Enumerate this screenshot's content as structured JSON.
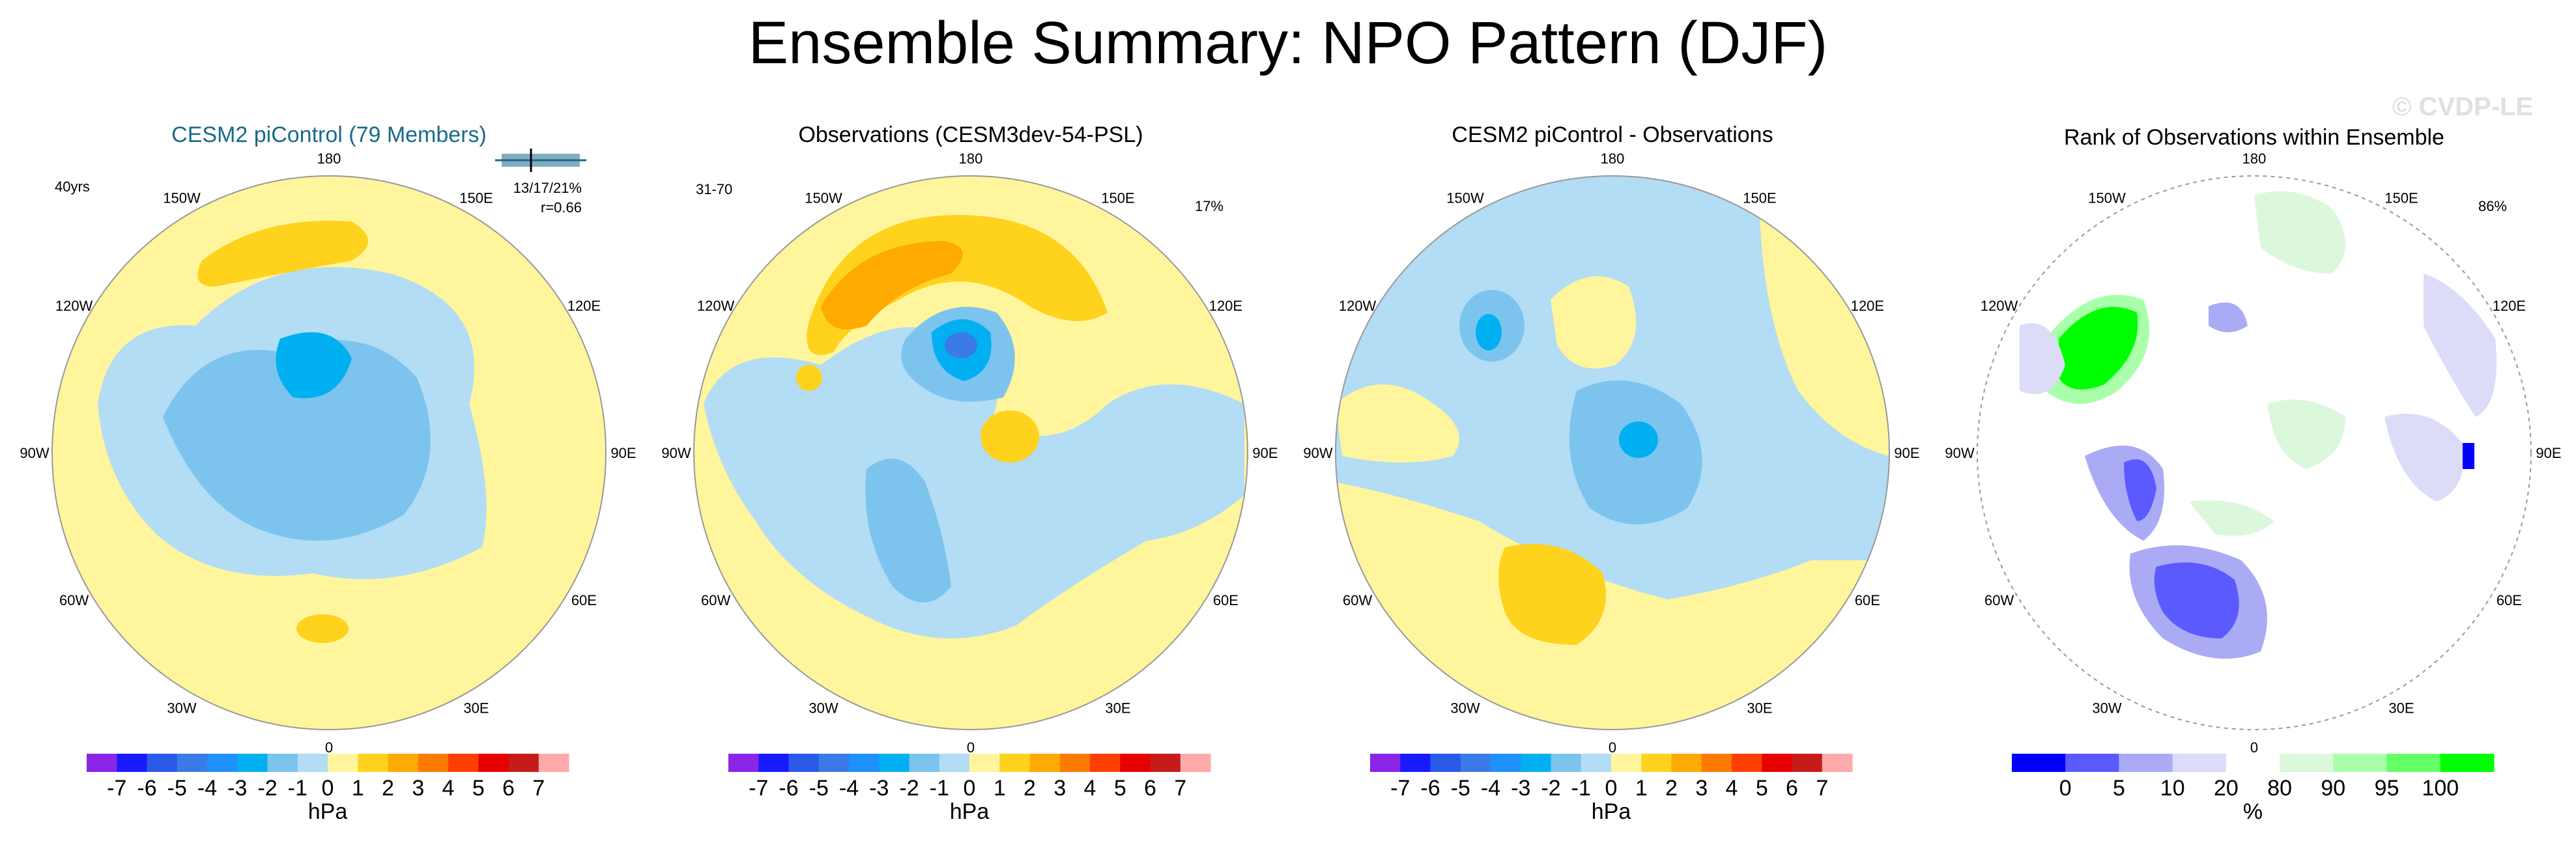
{
  "title": "Ensemble Summary: NPO Pattern (DJF)",
  "watermark": "© CVDP-LE",
  "longitude_labels": [
    "180",
    "150E",
    "120E",
    "90E",
    "60E",
    "30E",
    "0",
    "30W",
    "60W",
    "90W",
    "120W",
    "150W"
  ],
  "colors": {
    "title_blue": "#1a6a8a",
    "diverging": [
      "#8b26e6",
      "#1a1aff",
      "#2a5ae8",
      "#3a7be8",
      "#1e90ff",
      "#00b0f0",
      "#7cc4ee",
      "#b3dcf5",
      "#fff59d",
      "#ffd21e",
      "#ffaa00",
      "#ff7a00",
      "#ff3f00",
      "#e60000",
      "#c71a1a",
      "#ffaaaa"
    ],
    "rank": [
      "#0000ff",
      "#5a5aff",
      "#aaaaf5",
      "#dcdcf8",
      "#ffffff",
      "#dcf8dc",
      "#aaffaa",
      "#66ff66",
      "#00ff00"
    ]
  },
  "panels": [
    {
      "title": "CESM2 piControl (79 Members)",
      "corner_left": "40yrs",
      "stats": "13/17/21%",
      "corr": "r=0.66",
      "colorbar_labels": [
        "-7",
        "-6",
        "-5",
        "-4",
        "-3",
        "-2",
        "-1",
        "0",
        "1",
        "2",
        "3",
        "4",
        "5",
        "6",
        "7"
      ],
      "units": "hPa"
    },
    {
      "title": "Observations (CESM3dev-54-PSL)",
      "corner_left": "31-70",
      "corner_right": "17%",
      "colorbar_labels": [
        "-7",
        "-6",
        "-5",
        "-4",
        "-3",
        "-2",
        "-1",
        "0",
        "1",
        "2",
        "3",
        "4",
        "5",
        "6",
        "7"
      ],
      "units": "hPa"
    },
    {
      "title": "CESM2 piControl - Observations",
      "colorbar_labels": [
        "-7",
        "-6",
        "-5",
        "-4",
        "-3",
        "-2",
        "-1",
        "0",
        "1",
        "2",
        "3",
        "4",
        "5",
        "6",
        "7"
      ],
      "units": "hPa"
    },
    {
      "title": "Rank of Observations within Ensemble",
      "corner_right": "86%",
      "colorbar_labels": [
        "0",
        "5",
        "10",
        "20",
        "80",
        "90",
        "95",
        "100"
      ],
      "units": "%"
    }
  ]
}
